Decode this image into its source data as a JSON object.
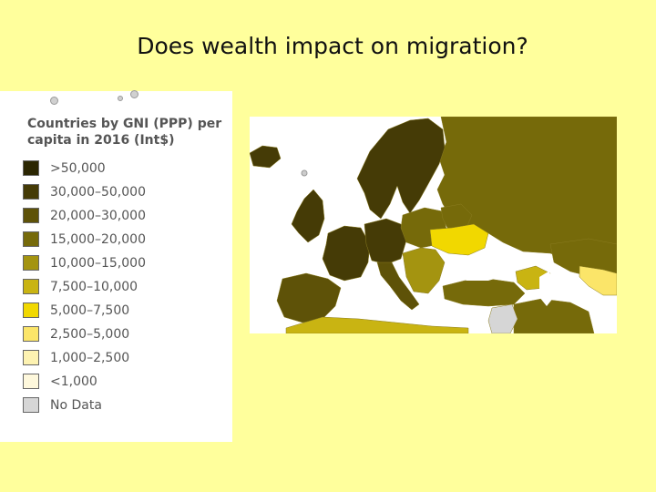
{
  "slide": {
    "title": "Does wealth impact on migration?"
  },
  "legend": {
    "title_line1": "Countries by GNI (PPP) per",
    "title_line2": "capita in 2016 (Int$)",
    "items": [
      {
        "label": ">50,000",
        "color": "#2b2602"
      },
      {
        "label": "30,000–50,000",
        "color": "#453b06"
      },
      {
        "label": "20,000–30,000",
        "color": "#5e5208"
      },
      {
        "label": "15,000–20,000",
        "color": "#766a0a"
      },
      {
        "label": "10,000–15,000",
        "color": "#a49410"
      },
      {
        "label": "7,500–10,000",
        "color": "#c9b412"
      },
      {
        "label": "5,000–7,500",
        "color": "#f1d800"
      },
      {
        "label": "2,500–5,000",
        "color": "#fbe569"
      },
      {
        "label": "1,000–2,500",
        "color": "#fdf2b1"
      },
      {
        "label": "<1,000",
        "color": "#fef8dc"
      },
      {
        "label": "No Data",
        "color": "#d6d6d6"
      }
    ]
  },
  "map": {
    "water_color": "#ffffff",
    "regions": [
      {
        "name": "russia",
        "class_index": 3
      },
      {
        "name": "scandinavia",
        "class_index": 1
      },
      {
        "name": "iceland",
        "class_index": 1
      },
      {
        "name": "uk",
        "class_index": 1
      },
      {
        "name": "western-europe",
        "class_index": 1
      },
      {
        "name": "iberia",
        "class_index": 2
      },
      {
        "name": "italy",
        "class_index": 2
      },
      {
        "name": "central-europe",
        "class_index": 1
      },
      {
        "name": "baltics-poland",
        "class_index": 3
      },
      {
        "name": "belarus",
        "class_index": 3
      },
      {
        "name": "ukraine",
        "class_index": 6
      },
      {
        "name": "balkans",
        "class_index": 4
      },
      {
        "name": "turkey",
        "class_index": 3
      },
      {
        "name": "caucasus",
        "class_index": 5
      },
      {
        "name": "kazakhstan",
        "class_index": 3
      },
      {
        "name": "central-asia",
        "class_index": 7
      },
      {
        "name": "north-africa",
        "class_index": 5
      },
      {
        "name": "middle-east",
        "class_index": 3
      },
      {
        "name": "syria",
        "class_index": 10
      }
    ]
  }
}
